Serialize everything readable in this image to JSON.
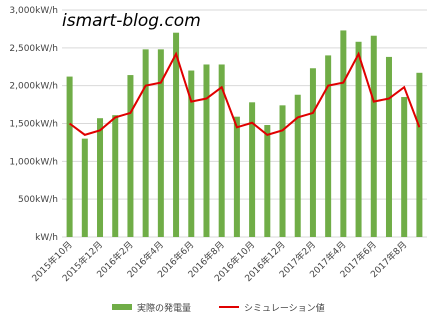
{
  "chart_data": {
    "type": "bar_line",
    "watermark": "ismart-blog.com",
    "categories": [
      "2015年10月",
      null,
      "2015年12月",
      null,
      "2016年2月",
      null,
      "2016年4月",
      null,
      "2016年6月",
      null,
      "2016年8月",
      null,
      "2016年10月",
      null,
      "2016年12月",
      null,
      "2017年2月",
      null,
      "2017年4月",
      null,
      "2017年6月",
      null,
      "2017年8月",
      null
    ],
    "series": [
      {
        "name": "実際の発電量",
        "type": "bar",
        "color": "#70ad47",
        "values": [
          2120,
          1300,
          1570,
          1610,
          2140,
          2480,
          2480,
          2700,
          2200,
          2280,
          2280,
          1590,
          1780,
          1480,
          1740,
          1880,
          2230,
          2400,
          2730,
          2580,
          2660,
          2380,
          1850,
          2170
        ]
      },
      {
        "name": "シミュレーション値",
        "type": "line",
        "color": "#e00000",
        "values": [
          1500,
          1350,
          1410,
          1580,
          1640,
          2000,
          2040,
          2420,
          1790,
          1830,
          1980,
          1450,
          1510,
          1350,
          1410,
          1580,
          1640,
          2000,
          2040,
          2420,
          1790,
          1830,
          1980,
          1450
        ]
      }
    ],
    "ylim": [
      0,
      3000
    ],
    "yticks": [
      {
        "value": 0,
        "label": "kW/h"
      },
      {
        "value": 500,
        "label": "500kW/h"
      },
      {
        "value": 1000,
        "label": "1,000kW/h"
      },
      {
        "value": 1500,
        "label": "1,500kW/h"
      },
      {
        "value": 2000,
        "label": "2,000kW/h"
      },
      {
        "value": 2500,
        "label": "2,500kW/h"
      },
      {
        "value": 3000,
        "label": "3,000kW/h"
      }
    ],
    "grid": true,
    "legend": "bottom"
  }
}
